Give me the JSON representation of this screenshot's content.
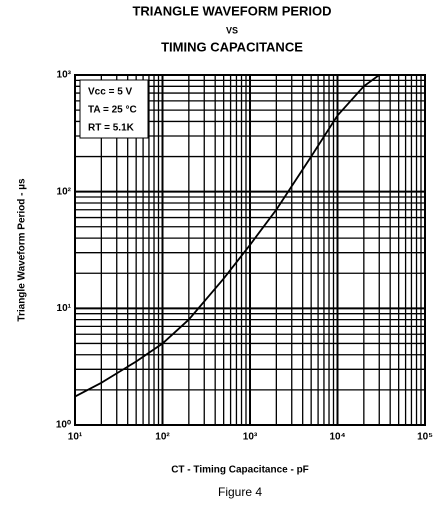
{
  "chart_data": {
    "type": "line",
    "title": [
      "TRIANGLE WAVEFORM PERIOD",
      "VS",
      "TIMING CAPACITANCE"
    ],
    "xlabel": "CT - Timing Capacitance - pF",
    "ylabel": "Triangle Waveform Period - µs",
    "caption": "Figure 4",
    "annotation": [
      "Vcc = 5 V",
      "TA = 25 °C",
      "RT = 5.1K"
    ],
    "xscale": "log",
    "yscale": "log",
    "grid": true,
    "minor_grid": true,
    "xlim": [
      10,
      100000
    ],
    "ylim": [
      1,
      1000
    ],
    "xticks": [
      {
        "value": 10,
        "label": "10¹"
      },
      {
        "value": 100,
        "label": "10²"
      },
      {
        "value": 1000,
        "label": "10³"
      },
      {
        "value": 10000,
        "label": "10⁴"
      },
      {
        "value": 100000,
        "label": "10⁵"
      }
    ],
    "yticks": [
      {
        "value": 1,
        "label": "10⁰"
      },
      {
        "value": 10,
        "label": "10¹"
      },
      {
        "value": 100,
        "label": "10²"
      },
      {
        "value": 1000,
        "label": "10³"
      }
    ],
    "series": [
      {
        "color": "#000000",
        "x": [
          10,
          20,
          50,
          100,
          200,
          500,
          1000,
          2000,
          5000,
          10000,
          20000,
          30000
        ],
        "values": [
          1.75,
          2.3,
          3.5,
          5,
          8,
          18,
          35,
          70,
          200,
          450,
          800,
          1000
        ]
      }
    ]
  }
}
